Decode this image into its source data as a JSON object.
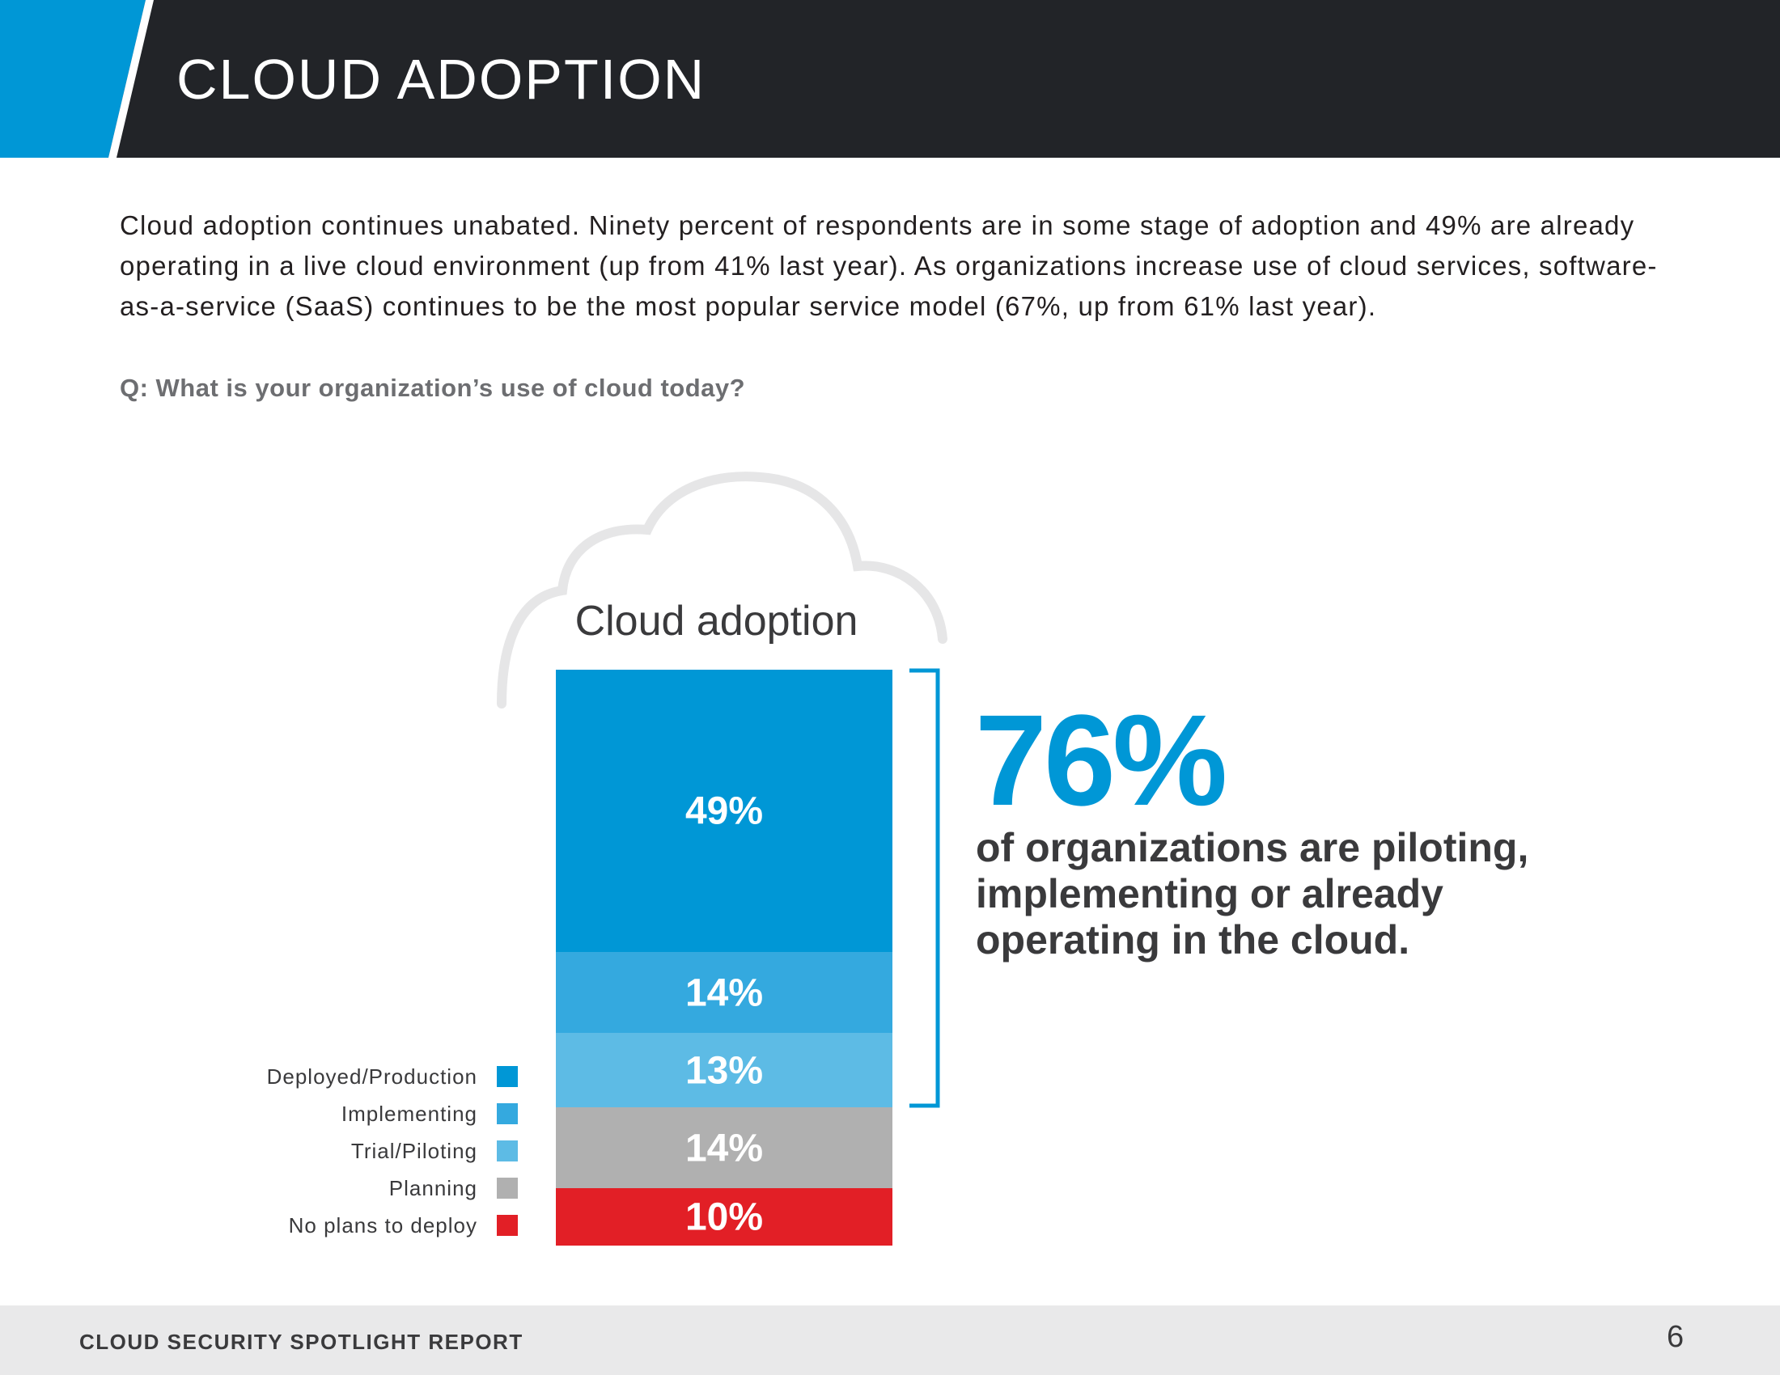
{
  "header": {
    "title": "CLOUD ADOPTION",
    "bar_color": "#222428",
    "accent_color": "#0097d6"
  },
  "intro_text": "Cloud adoption continues unabated. Ninety percent of respondents are in some stage of adoption and 49% are already operating in a live cloud environment (up from 41% last year). As organizations increase use of cloud services, software-as-a-service (SaaS) continues to be the most popular service model (67%, up from 61% last year).",
  "question": "Q: What is your organization’s use of cloud today?",
  "chart_data": {
    "type": "bar",
    "stacked": true,
    "title": "Cloud adoption",
    "unit": "%",
    "series": [
      {
        "name": "Deployed/Production",
        "value": 49,
        "label": "49%",
        "color": "#0097d6"
      },
      {
        "name": "Implementing",
        "value": 14,
        "label": "14%",
        "color": "#34a9df"
      },
      {
        "name": "Trial/Piloting",
        "value": 13,
        "label": "13%",
        "color": "#5dbbe5"
      },
      {
        "name": "Planning",
        "value": 14,
        "label": "14%",
        "color": "#b0b0b0"
      },
      {
        "name": "No plans to deploy",
        "value": 10,
        "label": "10%",
        "color": "#e21f26"
      }
    ],
    "legend_position": "left"
  },
  "callout": {
    "value": "76%",
    "text": "of organizations are piloting, implementing or already operating in the cloud."
  },
  "footer": {
    "title": "CLOUD SECURITY SPOTLIGHT REPORT",
    "page_number": "6"
  }
}
